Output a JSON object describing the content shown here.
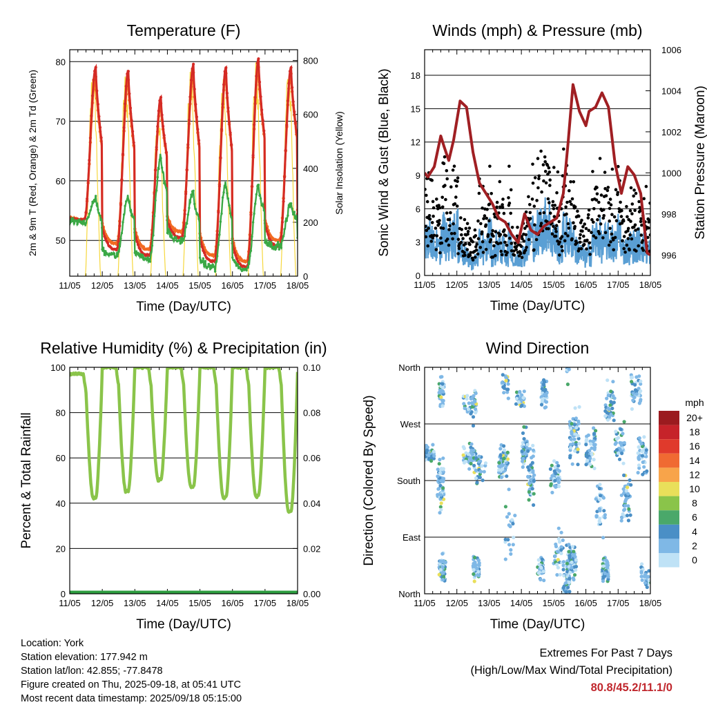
{
  "chart_data": [
    {
      "type": "line",
      "title": "Temperature (F)",
      "xlabel": "Time (Day/UTC)",
      "ylabel": "2m & 9m T (Red, Orange) & 2m Td (Green)",
      "ylabel_right": "Solar Insolation (Yellow)",
      "x_ticks": [
        "11/05",
        "12/05",
        "13/05",
        "14/05",
        "15/05",
        "16/05",
        "17/05",
        "18/05"
      ],
      "y_ticks": [
        50,
        60,
        70,
        80
      ],
      "y_ticks_right": [
        0,
        200,
        400,
        600,
        800
      ],
      "ylim": [
        44,
        82
      ],
      "ylim_right": [
        0,
        840
      ],
      "grid": true,
      "series": [
        {
          "name": "2m T",
          "color": "#d42a25",
          "style": "thick-dotted",
          "daily_min": [
            53.5,
            48.5,
            47.5,
            50.5,
            46.5,
            45.5,
            49.0,
            51.0
          ],
          "daily_max": [
            79.0,
            78.5,
            74.0,
            79.5,
            79.0,
            80.5,
            79.0
          ]
        },
        {
          "name": "9m T",
          "color": "#f26b22",
          "style": "thick-dotted",
          "daily_min": [
            53.5,
            49.5,
            48.5,
            51.5,
            47.5,
            46.5,
            50.0,
            52.0
          ],
          "daily_max": [
            77.5,
            77.0,
            73.0,
            78.0,
            78.0,
            79.0,
            78.0
          ]
        },
        {
          "name": "2m Td",
          "color": "#3aa845",
          "style": "dotted",
          "daily_min": [
            53.0,
            47.5,
            47.0,
            50.0,
            45.5,
            45.2,
            49.0,
            49.5
          ],
          "daily_max": [
            57.0,
            57.5,
            64.0,
            58.0,
            59.5,
            59.0,
            56.0
          ]
        },
        {
          "name": "Solar Insolation",
          "color": "#f5d327",
          "axis": "right",
          "daily_peak": [
            805,
            770,
            630,
            795,
            780,
            805,
            805
          ]
        }
      ]
    },
    {
      "type": "line",
      "title": "Winds (mph) & Pressure (mb)",
      "xlabel": "Time (Day/UTC)",
      "ylabel": "Sonic Wind & Gust (Blue, Black)",
      "ylabel_right": "Station Pressure (Maroon)",
      "x_ticks": [
        "11/05",
        "12/05",
        "13/05",
        "14/05",
        "15/05",
        "16/05",
        "17/05",
        "18/05"
      ],
      "y_ticks": [
        0,
        3,
        6,
        9,
        12,
        15,
        18
      ],
      "y_ticks_right": [
        996,
        998,
        1000,
        1002,
        1004,
        1006
      ],
      "ylim": [
        0,
        20.3
      ],
      "ylim_right": [
        995,
        1006
      ],
      "grid": true,
      "series": [
        {
          "name": "Sonic Wind",
          "color": "#5a9fd4"
        },
        {
          "name": "Gust",
          "color": "#000000"
        },
        {
          "name": "Station Pressure",
          "color": "#a01f23",
          "axis": "right",
          "x": [
            0,
            0.1,
            0.3,
            0.5,
            0.6,
            0.75,
            0.9,
            1.1,
            1.3,
            1.5,
            1.7,
            1.9,
            2.1,
            2.3,
            2.5,
            2.7,
            2.9,
            3.1,
            3.3,
            3.5,
            3.7,
            3.9,
            4.1,
            4.3,
            4.45,
            4.6,
            4.8,
            5.0,
            5.1,
            5.3,
            5.5,
            5.7,
            5.9,
            6.1,
            6.3,
            6.5,
            6.7,
            6.9,
            7.0
          ],
          "y": [
            1000.0,
            999.8,
            1000.3,
            1001.8,
            1001.3,
            1000.6,
            1001.6,
            1003.5,
            1003.2,
            1001.0,
            999.5,
            999.0,
            998.5,
            997.8,
            997.6,
            997.0,
            996.6,
            998.0,
            997.2,
            997.0,
            997.4,
            997.6,
            997.8,
            999.0,
            1001.5,
            1004.3,
            1003.0,
            1002.3,
            1003.0,
            1003.2,
            1003.9,
            1003.2,
            1000.5,
            999.0,
            1000.3,
            999.9,
            999.0,
            996.1,
            996.0
          ]
        }
      ]
    },
    {
      "type": "line",
      "title": "Relative Humidity (%) & Precipitation (in)",
      "xlabel": "Time (Day/UTC)",
      "ylabel": "Percent & Total Rainfall",
      "x_ticks": [
        "11/05",
        "12/05",
        "13/05",
        "14/05",
        "15/05",
        "16/05",
        "17/05",
        "18/05"
      ],
      "y_ticks": [
        0,
        20,
        40,
        60,
        80,
        100
      ],
      "y_ticks_right": [
        "0.00",
        "0.02",
        "0.04",
        "0.06",
        "0.08",
        "0.10"
      ],
      "ylim": [
        0,
        100
      ],
      "ylim_right": [
        0,
        0.1
      ],
      "grid": true,
      "series": [
        {
          "name": "Relative Humidity",
          "color": "#8ac44a",
          "daily_max": [
            97,
            100,
            100,
            100,
            100,
            100,
            100,
            98
          ],
          "daily_min": [
            42,
            45,
            50,
            47,
            42,
            43,
            36
          ]
        },
        {
          "name": "Total Precipitation",
          "color": "#2e9e40",
          "axis": "right",
          "values_note_free": 0.0
        }
      ]
    },
    {
      "type": "scatter",
      "title": "Wind Direction",
      "xlabel": "Time (Day/UTC)",
      "ylabel": "Direction (Colored By Speed)",
      "x_ticks": [
        "11/05",
        "12/05",
        "13/05",
        "14/05",
        "15/05",
        "16/05",
        "17/05",
        "18/05"
      ],
      "y_ticks": [
        "North",
        "East",
        "South",
        "West",
        "North"
      ],
      "ylim": [
        0,
        360
      ],
      "grid": true,
      "colorbar": {
        "title": "mph",
        "labels": [
          "20+",
          "18",
          "16",
          "14",
          "12",
          "10",
          "8",
          "6",
          "4",
          "2",
          "0"
        ],
        "colors": [
          "#9b1b1f",
          "#c6232a",
          "#e03a2c",
          "#f06a32",
          "#f8a44a",
          "#e9df5a",
          "#8ac44a",
          "#4aa86a",
          "#4a8fc6",
          "#7fb8e6",
          "#bfe2f6"
        ]
      }
    }
  ],
  "info": {
    "location": "Location: York",
    "elevation": "Station elevation: 177.942 m",
    "latlon": "Station lat/lon: 42.855; -77.8478",
    "created": "Figure created on Thu, 2025-09-18, at 05:41 UTC",
    "recent": "Most recent data timestamp: 2025/09/18 05:15:00"
  },
  "extremes": {
    "title": "Extremes For Past 7 Days",
    "subtitle": "(High/Low/Max Wind/Total Precipitation)",
    "values": "80.8/45.2/11.1/0"
  }
}
